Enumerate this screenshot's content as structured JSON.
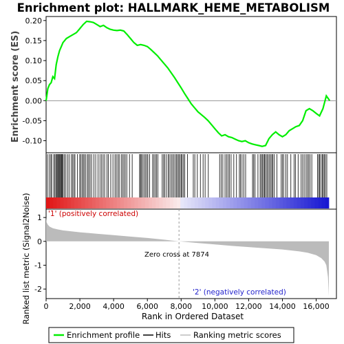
{
  "title": "Enrichment plot: HALLMARK_HEME_METABOLISM",
  "colors": {
    "enrichment_line": "#00ee00",
    "hits": "#000000",
    "metric_fill": "#bbbbbb",
    "positive_label": "#cc0000",
    "negative_label": "#2222cc",
    "zero_line": "#999999"
  },
  "chart_data": [
    {
      "type": "line",
      "name": "enrichment-panel",
      "ylabel": "Enrichment score (ES)",
      "xlim": [
        0,
        17200
      ],
      "ylim": [
        -0.13,
        0.21
      ],
      "yticks": [
        "0.20",
        "0.15",
        "0.10",
        "0.05",
        "0.00",
        "-0.05",
        "-0.10"
      ],
      "ytick_values": [
        0.2,
        0.15,
        0.1,
        0.05,
        0.0,
        -0.05,
        -0.1
      ],
      "grid": false,
      "series": [
        {
          "name": "Enrichment profile",
          "x": [
            0,
            100,
            200,
            300,
            400,
            500,
            600,
            700,
            800,
            900,
            1000,
            1100,
            1200,
            1400,
            1600,
            1800,
            2000,
            2200,
            2400,
            2600,
            2800,
            3000,
            3200,
            3400,
            3600,
            3800,
            4000,
            4200,
            4400,
            4600,
            4800,
            5000,
            5200,
            5400,
            5600,
            5800,
            6000,
            6200,
            6400,
            6600,
            6800,
            7000,
            7200,
            7400,
            7600,
            7800,
            8000,
            8200,
            8400,
            8600,
            8800,
            9000,
            9200,
            9400,
            9600,
            9800,
            10000,
            10200,
            10400,
            10600,
            10800,
            11000,
            11200,
            11400,
            11600,
            11800,
            12000,
            12200,
            12400,
            12600,
            12800,
            13000,
            13200,
            13400,
            13600,
            13800,
            14000,
            14200,
            14400,
            14600,
            14800,
            15000,
            15200,
            15400,
            15600,
            15800,
            16000,
            16200,
            16400,
            16600,
            16800
          ],
          "y": [
            0.0,
            0.03,
            0.04,
            0.045,
            0.06,
            0.055,
            0.09,
            0.11,
            0.125,
            0.135,
            0.145,
            0.15,
            0.155,
            0.16,
            0.165,
            0.17,
            0.18,
            0.19,
            0.198,
            0.197,
            0.195,
            0.19,
            0.185,
            0.188,
            0.182,
            0.178,
            0.176,
            0.175,
            0.176,
            0.174,
            0.165,
            0.155,
            0.145,
            0.138,
            0.14,
            0.138,
            0.135,
            0.128,
            0.12,
            0.112,
            0.102,
            0.092,
            0.082,
            0.07,
            0.058,
            0.045,
            0.032,
            0.018,
            0.005,
            -0.008,
            -0.018,
            -0.028,
            -0.035,
            -0.042,
            -0.05,
            -0.06,
            -0.07,
            -0.08,
            -0.088,
            -0.085,
            -0.09,
            -0.092,
            -0.096,
            -0.1,
            -0.102,
            -0.1,
            -0.105,
            -0.108,
            -0.11,
            -0.112,
            -0.114,
            -0.112,
            -0.095,
            -0.085,
            -0.078,
            -0.085,
            -0.09,
            -0.085,
            -0.075,
            -0.07,
            -0.065,
            -0.062,
            -0.05,
            -0.025,
            -0.02,
            -0.025,
            -0.032,
            -0.038,
            -0.02,
            0.012,
            0.0
          ]
        }
      ]
    },
    {
      "type": "area",
      "name": "metric-panel",
      "ylabel": "Ranked list metric (Signal2Noise)",
      "xlabel": "Rank in Ordered Dataset",
      "xlim": [
        0,
        17200
      ],
      "ylim": [
        -2.4,
        1.35
      ],
      "yticks": [
        "1",
        "0",
        "-1",
        "-2"
      ],
      "ytick_values": [
        1,
        0,
        -1,
        -2
      ],
      "xticks": [
        "0",
        "2,000",
        "4,000",
        "6,000",
        "8,000",
        "10,000",
        "12,000",
        "14,000",
        "16,000"
      ],
      "xtick_values": [
        0,
        2000,
        4000,
        6000,
        8000,
        10000,
        12000,
        14000,
        16000
      ],
      "series": [
        {
          "name": "Ranking metric scores",
          "x": [
            0,
            30,
            100,
            200,
            400,
            700,
            1000,
            1500,
            2000,
            3000,
            4000,
            5000,
            6000,
            7000,
            7874,
            9000,
            10000,
            11000,
            12000,
            13000,
            14000,
            15000,
            15500,
            16000,
            16300,
            16500,
            16600,
            16700,
            16750
          ],
          "y": [
            1.0,
            0.8,
            0.7,
            0.62,
            0.55,
            0.5,
            0.46,
            0.42,
            0.38,
            0.32,
            0.26,
            0.2,
            0.14,
            0.07,
            0.0,
            -0.07,
            -0.13,
            -0.19,
            -0.24,
            -0.29,
            -0.34,
            -0.42,
            -0.48,
            -0.58,
            -0.7,
            -0.85,
            -1.0,
            -1.5,
            -2.3
          ]
        }
      ],
      "annotations": {
        "zero_cross": "Zero cross at 7874",
        "zero_cross_x": 7874,
        "positive_label": "'1' (positively correlated)",
        "negative_label": "'2' (negatively correlated)"
      }
    }
  ],
  "hits": [
    0,
    80,
    190,
    280,
    330,
    450,
    520,
    580,
    640,
    690,
    730,
    780,
    820,
    870,
    910,
    960,
    1010,
    1080,
    1170,
    1270,
    1360,
    1490,
    1570,
    1640,
    1710,
    1860,
    1990,
    2060,
    2140,
    2210,
    2280,
    2360,
    2460,
    2530,
    2610,
    2700,
    2830,
    2940,
    3080,
    3190,
    3290,
    3380,
    3470,
    3610,
    3690,
    3830,
    3960,
    4080,
    4160,
    4260,
    4330,
    4450,
    4530,
    4610,
    4690,
    4780,
    4940,
    5100,
    5540,
    5590,
    5640,
    5720,
    5800,
    5880,
    5960,
    6030,
    6130,
    6310,
    6390,
    6470,
    6540,
    6620,
    6880,
    6960,
    7030,
    7130,
    7230,
    7300,
    7400,
    7470,
    7560,
    7640,
    7720,
    7790,
    7860,
    7930,
    8000,
    8060,
    8140,
    8210,
    8380,
    8720,
    8810,
    8960,
    9140,
    9300,
    9420,
    9610,
    10280,
    10380,
    10470,
    10600,
    10690,
    10780,
    10860,
    10960,
    11120,
    11280,
    11450,
    11520,
    11610,
    11710,
    11820,
    12230,
    12300,
    12380,
    12550,
    12680,
    12750,
    12810,
    12880,
    12940,
    13000,
    13080,
    13150,
    13220,
    13300,
    13370,
    13430,
    13510,
    13670,
    13930,
    14000,
    14080,
    14200,
    14300,
    14500,
    14690,
    14780,
    14930,
    15110,
    15200,
    15290,
    15400,
    15480,
    15560,
    15640,
    15740,
    16080,
    16150,
    16200,
    16280,
    16360,
    16420,
    16480,
    16550,
    16630
  ],
  "legend": {
    "enrichment": "Enrichment profile",
    "hits": "Hits",
    "ranking": "Ranking metric scores"
  }
}
